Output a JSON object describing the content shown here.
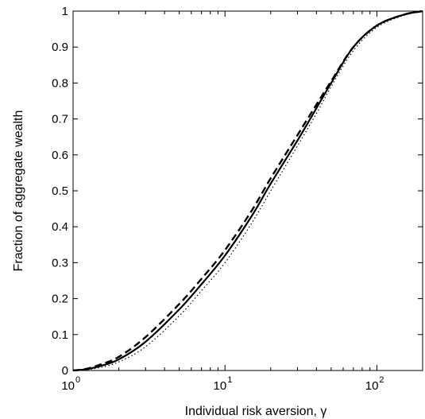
{
  "chart_data": {
    "type": "line",
    "title": "",
    "xlabel": "Individual risk aversion, γ",
    "ylabel": "Fraction of aggregate wealth",
    "xscale": "log",
    "xlim": [
      1,
      200
    ],
    "ylim": [
      0,
      1
    ],
    "grid": false,
    "legend": "none",
    "x_ticks": [
      {
        "base": "10",
        "exp": "0",
        "value": 1
      },
      {
        "base": "10",
        "exp": "1",
        "value": 10
      },
      {
        "base": "10",
        "exp": "2",
        "value": 100
      }
    ],
    "y_ticks": [
      "0",
      "0.1",
      "0.2",
      "0.3",
      "0.4",
      "0.5",
      "0.6",
      "0.7",
      "0.8",
      "0.9",
      "1"
    ],
    "series": [
      {
        "style": "solid",
        "color": "#000000",
        "x": [
          1,
          1.2,
          1.5,
          2,
          3,
          5,
          7,
          10,
          15,
          20,
          30,
          40,
          50,
          70,
          100,
          150,
          200
        ],
        "y": [
          0,
          0.003,
          0.012,
          0.031,
          0.08,
          0.17,
          0.24,
          0.32,
          0.43,
          0.52,
          0.64,
          0.73,
          0.8,
          0.9,
          0.96,
          0.99,
          1.0
        ]
      },
      {
        "style": "dashed",
        "color": "#000000",
        "x": [
          1,
          1.2,
          1.5,
          2,
          3,
          5,
          7,
          10,
          15,
          20,
          30,
          40,
          50,
          70,
          100,
          150,
          200
        ],
        "y": [
          0,
          0.004,
          0.016,
          0.038,
          0.093,
          0.185,
          0.255,
          0.335,
          0.445,
          0.535,
          0.655,
          0.74,
          0.805,
          0.9,
          0.96,
          0.99,
          1.0
        ]
      },
      {
        "style": "dotted",
        "color": "#000000",
        "x": [
          1,
          1.2,
          1.5,
          2,
          3,
          5,
          7,
          10,
          15,
          20,
          30,
          40,
          50,
          70,
          100,
          150,
          200
        ],
        "y": [
          0,
          0.002,
          0.008,
          0.024,
          0.066,
          0.152,
          0.222,
          0.3,
          0.41,
          0.5,
          0.625,
          0.715,
          0.79,
          0.89,
          0.955,
          0.988,
          1.0
        ]
      }
    ]
  }
}
